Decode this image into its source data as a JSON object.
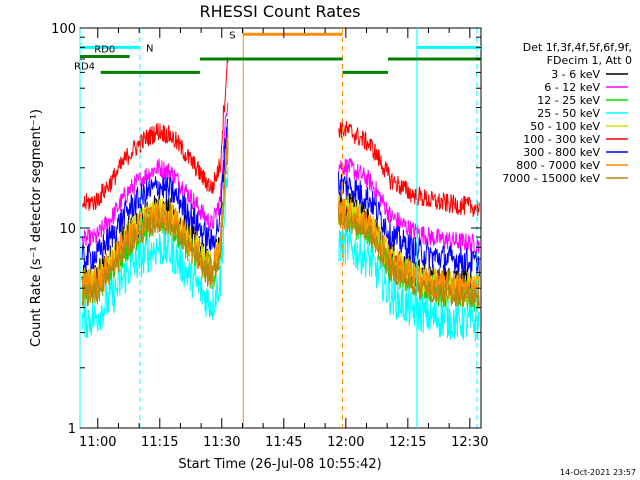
{
  "chart_data": {
    "type": "line",
    "title": "RHESSI Count Rates",
    "xlabel_prefix": "Start Time",
    "start_time": "26-Jul-08 10:55:42",
    "xlabel": "Start Time (26-Jul-08 10:55:42)",
    "ylabel": "Count Rate (s⁻¹ detector segment⁻¹)",
    "x_scale": "linear (minutes after 10:55:42)",
    "y_scale": "log",
    "xlim": [
      0,
      97
    ],
    "ylim": [
      1,
      100
    ],
    "x_ticks": [
      {
        "label": "11:00",
        "value": 4.3
      },
      {
        "label": "11:15",
        "value": 19.3
      },
      {
        "label": "11:30",
        "value": 34.3
      },
      {
        "label": "11:45",
        "value": 49.3
      },
      {
        "label": "12:00",
        "value": 64.3
      },
      {
        "label": "12:15",
        "value": 79.3
      },
      {
        "label": "12:30",
        "value": 94.3
      }
    ],
    "y_ticks": [
      {
        "label": "1",
        "value": 1
      },
      {
        "label": "10",
        "value": 10
      },
      {
        "label": "100",
        "value": 100
      }
    ],
    "legend": {
      "position": "right",
      "header": [
        "Det 1f,3f,4f,5f,6f,9f,",
        "FDecim 1, Att 0"
      ],
      "entries": [
        {
          "label": "3 - 6 keV",
          "color": "#000000"
        },
        {
          "label": "6 - 12 keV",
          "color": "#ff00ff"
        },
        {
          "label": "12 - 25 keV",
          "color": "#00dd00"
        },
        {
          "label": "25 - 50 keV",
          "color": "#00ffff"
        },
        {
          "label": "50 - 100 keV",
          "color": "#dddd00"
        },
        {
          "label": "100 - 300 keV",
          "color": "#ff0000"
        },
        {
          "label": "300 - 800 keV",
          "color": "#0000ff"
        },
        {
          "label": "800 - 7000 keV",
          "color": "#ff8c00"
        },
        {
          "label": "7000 - 15000 keV",
          "color": "#b8860b"
        }
      ]
    },
    "series_profile": {
      "gap": [
        35.8,
        62.5
      ],
      "anchor_x": [
        0,
        4,
        8,
        12,
        16,
        19,
        22,
        26,
        30,
        32,
        34,
        35,
        35.8,
        62.5,
        65,
        68,
        70,
        72,
        75,
        80,
        85,
        90,
        97
      ],
      "anchor_rel": [
        0.75,
        0.78,
        1.0,
        1.35,
        1.6,
        1.75,
        1.65,
        1.3,
        1.0,
        0.9,
        1.2,
        2.5,
        4.0,
        1.8,
        1.75,
        1.6,
        1.5,
        1.3,
        1.0,
        0.85,
        0.78,
        0.75,
        0.72
      ]
    },
    "series": [
      {
        "name": "3 - 6 keV",
        "color": "#000000",
        "base": 7.2,
        "noise": 0.08
      },
      {
        "name": "6 - 12 keV",
        "color": "#ff00ff",
        "base": 11.5,
        "noise": 0.05
      },
      {
        "name": "12 - 25 keV",
        "color": "#00dd00",
        "base": 6.3,
        "noise": 0.08
      },
      {
        "name": "25 - 50 keV",
        "color": "#00ffff",
        "base": 4.6,
        "noise": 0.1
      },
      {
        "name": "50 - 100 keV",
        "color": "#dddd00",
        "base": 6.9,
        "noise": 0.08
      },
      {
        "name": "100 - 300 keV",
        "color": "#ff0000",
        "base": 17.5,
        "noise": 0.05
      },
      {
        "name": "300 - 800 keV",
        "color": "#0000ff",
        "base": 9.3,
        "noise": 0.07
      },
      {
        "name": "800 - 7000 keV",
        "color": "#ff8c00",
        "base": 6.8,
        "noise": 0.08
      },
      {
        "name": "7000 - 15000 keV",
        "color": "#b8860b",
        "base": 6.2,
        "noise": 0.06
      }
    ],
    "markers": {
      "N": {
        "label": "N",
        "color": "#00ffff",
        "y": 80,
        "segments": [
          [
            0,
            14.5
          ],
          [
            81.5,
            97
          ]
        ],
        "vlines": [
          {
            "x": 0,
            "style": "solid"
          },
          {
            "x": 14.5,
            "style": "dashed"
          },
          {
            "x": 81.5,
            "style": "solid"
          },
          {
            "x": 96,
            "style": "dashed"
          }
        ]
      },
      "S": {
        "label": "S",
        "color": "#ff8c00",
        "y": 93,
        "segments": [
          [
            39.5,
            63.5
          ]
        ],
        "vlines": [
          {
            "x": 39.5,
            "style": "solid"
          },
          {
            "x": 63.5,
            "style": "dashed"
          }
        ]
      },
      "RD0": {
        "label": "RD0",
        "color": "#008000",
        "y": 72,
        "segments": [
          [
            2,
            12
          ]
        ]
      },
      "RD4": {
        "label": "RD4",
        "color": "#008000",
        "y": 60,
        "segments": [
          [
            0,
            5
          ],
          [
            5,
            29
          ],
          [
            29,
            63.5
          ],
          [
            63.5,
            74.5
          ],
          [
            74.5,
            97
          ]
        ],
        "segment_y": [
          72,
          60,
          70,
          60,
          70
        ]
      }
    }
  },
  "footer": {
    "timestamp": "14-Oct-2021 23:57"
  }
}
